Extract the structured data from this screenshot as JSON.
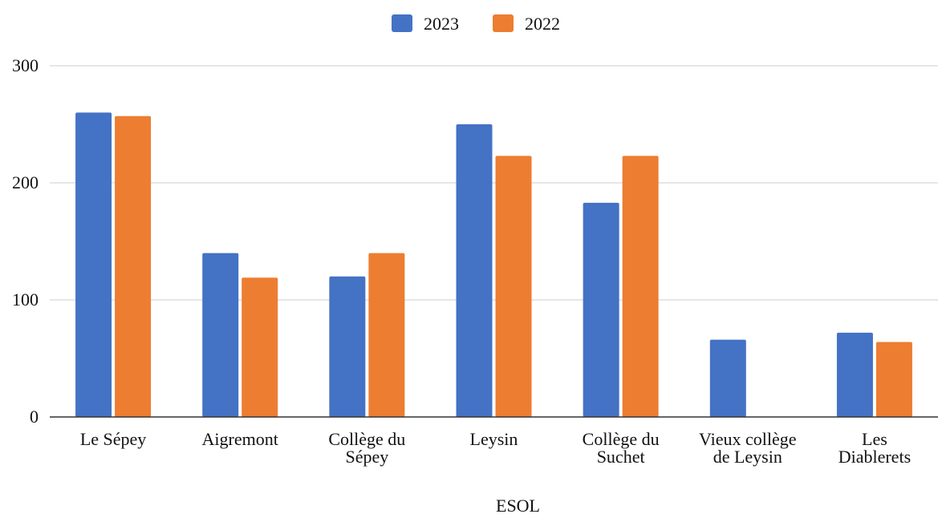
{
  "chart_data": {
    "type": "bar",
    "title": "",
    "xlabel": "ESOL",
    "ylabel": "",
    "ylim": [
      0,
      300
    ],
    "yticks": [
      0,
      100,
      200,
      300
    ],
    "grid": true,
    "legend_position": "top-center",
    "categories": [
      [
        "Le Sépey"
      ],
      [
        "Aigremont"
      ],
      [
        "Collège du",
        "Sépey"
      ],
      [
        "Leysin"
      ],
      [
        "Collège du",
        "Suchet"
      ],
      [
        "Vieux collège",
        "de Leysin"
      ],
      [
        "Les",
        "Diablerets"
      ]
    ],
    "series": [
      {
        "name": "2023",
        "color": "#4472c4",
        "values": [
          260,
          140,
          120,
          250,
          183,
          66,
          72
        ]
      },
      {
        "name": "2022",
        "color": "#ed7d31",
        "values": [
          257,
          119,
          140,
          223,
          223,
          0,
          64
        ]
      }
    ]
  }
}
